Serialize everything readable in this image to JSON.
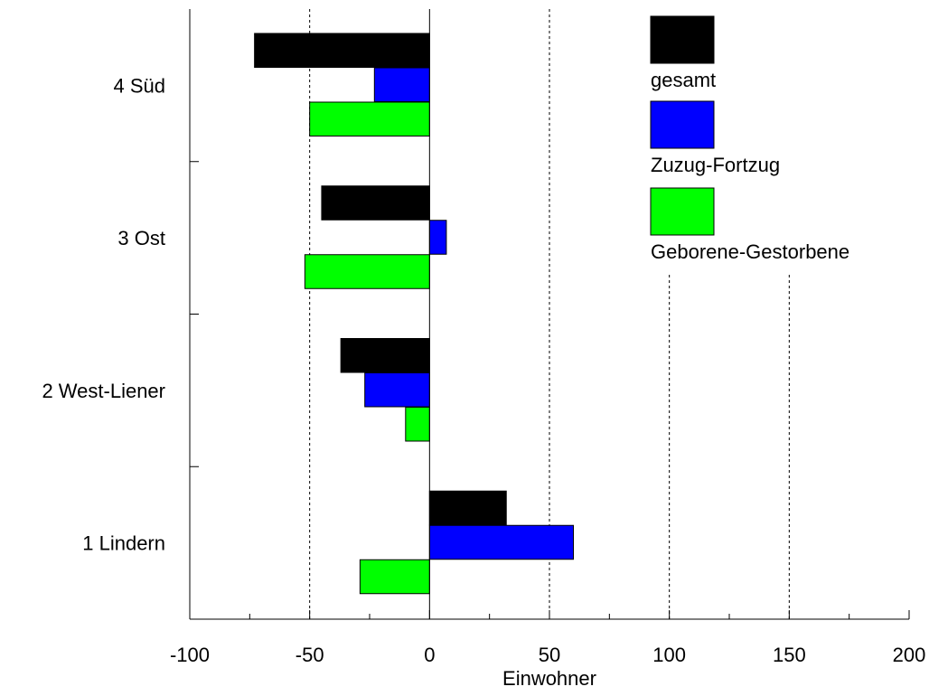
{
  "chart_data": {
    "type": "bar",
    "orientation": "horizontal",
    "xlabel": "Einwohner",
    "ylabel": "",
    "title": "",
    "xlim": [
      -100,
      200
    ],
    "x_ticks": [
      "-100",
      "-50",
      "0",
      "50",
      "100",
      "150",
      "200"
    ],
    "categories": [
      "4 Süd",
      "3 Ost",
      "2 West-Liener",
      "1 Lindern"
    ],
    "series": [
      {
        "name": "gesamt",
        "color": "#000000",
        "values": [
          -73,
          -45,
          -37,
          32
        ]
      },
      {
        "name": "Zuzug-Fortzug",
        "color": "#0000ff",
        "values": [
          -23,
          7,
          -27,
          60
        ]
      },
      {
        "name": "Geborene-Gestorbene",
        "color": "#00ff00",
        "values": [
          -50,
          -52,
          -10,
          -29
        ]
      }
    ],
    "grid": "dashed vertical at 50 and 100",
    "legend_position": "top-right, inside plot"
  }
}
